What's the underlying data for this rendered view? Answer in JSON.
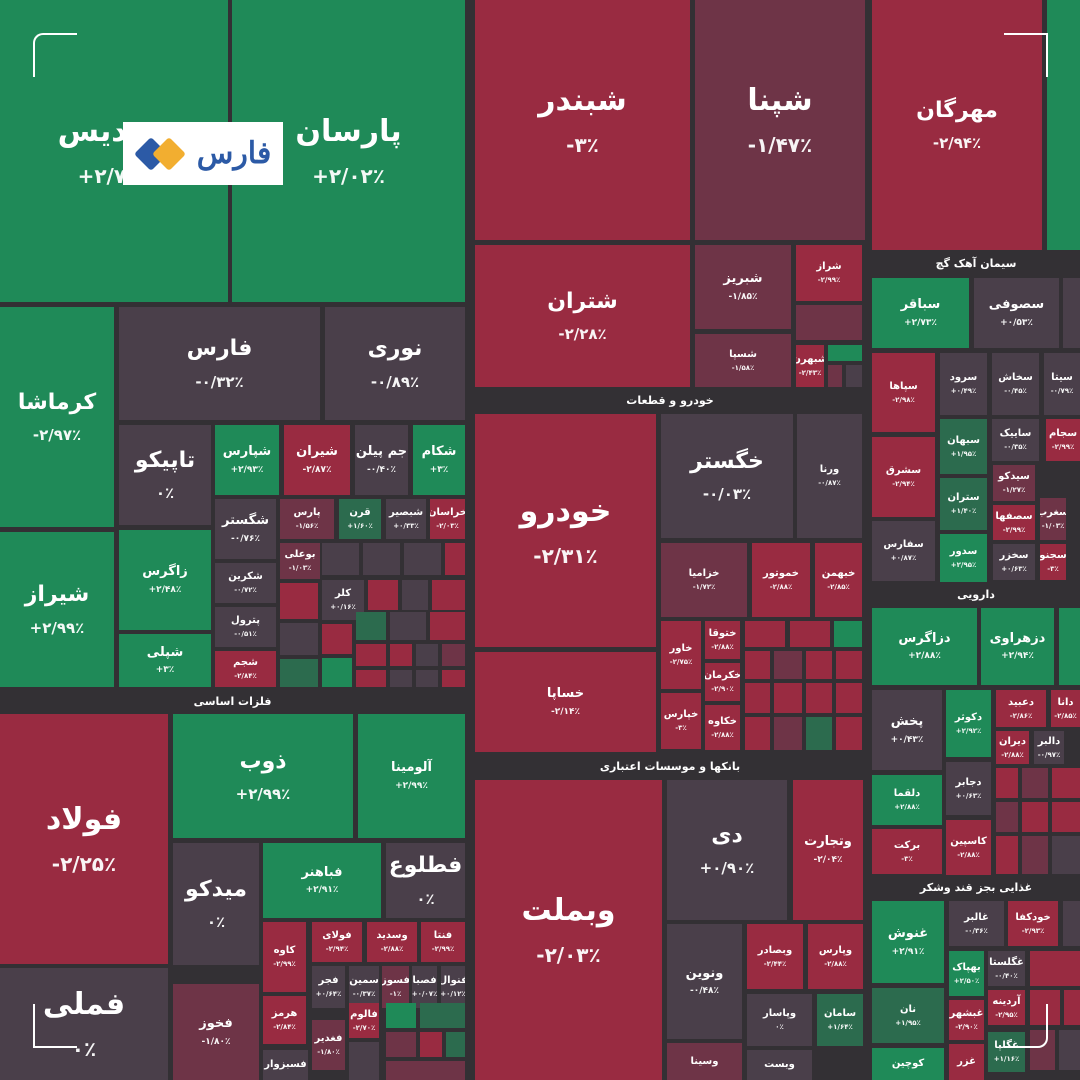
{
  "palette": {
    "g": "#1f8a58",
    "r": "#992b41",
    "n": "#4a3f4a",
    "m": "#6e3447",
    "d": "#2c6b4e"
  },
  "logo": {
    "text": "فارس",
    "colors": [
      "#2c5aa6",
      "#f2ae30"
    ]
  },
  "sections": [
    "فلزات اساسی",
    "خودرو و قطعات",
    "بانکها و موسسات اعتباری",
    "سیمان آهک گچ",
    "دارویی",
    "غذایی بجز قند وشکر"
  ],
  "tiles": [
    {
      "name": "شپدیس",
      "value": "+۲/۷۵٪",
      "c": "g"
    },
    {
      "name": "پارسان",
      "value": "+۲/۰۲٪",
      "c": "g"
    },
    {
      "name": "کرماشا",
      "value": "-۲/۹۷٪",
      "c": "g"
    },
    {
      "name": "شیراز",
      "value": "+۲/۹۹٪",
      "c": "g"
    },
    {
      "name": "فارس",
      "value": "-۰/۳۲٪",
      "c": "n"
    },
    {
      "name": "نوری",
      "value": "-۰/۸۹٪",
      "c": "n"
    },
    {
      "name": "تاپیکو",
      "value": "۰٪",
      "c": "n"
    },
    {
      "name": "زاگرس",
      "value": "+۲/۴۸٪",
      "c": "g"
    },
    {
      "name": "شپلی",
      "value": "+۳٪",
      "c": "g"
    },
    {
      "name": "شپارس",
      "value": "+۲/۹۳٪",
      "c": "g"
    },
    {
      "name": "شیران",
      "value": "-۲/۸۷٪",
      "c": "r"
    },
    {
      "name": "جم پیلن",
      "value": "-۰/۴۰٪",
      "c": "n"
    },
    {
      "name": "شکام",
      "value": "+۳٪",
      "c": "g"
    },
    {
      "name": "شگستر",
      "value": "-۰/۷۶٪",
      "c": "n"
    },
    {
      "name": "پارس",
      "value": "-۱/۵۶٪",
      "c": "m"
    },
    {
      "name": "قرن",
      "value": "+۱/۶۰٪",
      "c": "d"
    },
    {
      "name": "شبصیر",
      "value": "+۰/۳۳٪",
      "c": "n"
    },
    {
      "name": "خراسان",
      "value": "-۲/۰۳٪",
      "c": "r"
    },
    {
      "name": "شکرین",
      "value": "-۰/۷۲٪",
      "c": "n"
    },
    {
      "name": "بوعلی",
      "value": "-۱/۰۳٪",
      "c": "m"
    },
    {
      "name": "پترول",
      "value": "-۰/۵۱٪",
      "c": "n"
    },
    {
      "name": "کلر",
      "value": "+۰/۱۶٪",
      "c": "n"
    },
    {
      "name": "شجم",
      "value": "-۲/۸۴٪",
      "c": "r"
    },
    {
      "name": "فولاد",
      "value": "-۲/۲۵٪",
      "c": "r"
    },
    {
      "name": "ذوب",
      "value": "+۲/۹۹٪",
      "c": "g"
    },
    {
      "name": "آلومینا",
      "value": "+۲/۹۹٪",
      "c": "g"
    },
    {
      "name": "میدکو",
      "value": "۰٪",
      "c": "n"
    },
    {
      "name": "فباهنر",
      "value": "+۲/۹۱٪",
      "c": "g"
    },
    {
      "name": "فطلوع",
      "value": "۰٪",
      "c": "n"
    },
    {
      "name": "کاوه",
      "value": "-۲/۹۹٪",
      "c": "r"
    },
    {
      "name": "فولای",
      "value": "-۲/۹۴٪",
      "c": "r"
    },
    {
      "name": "وسدید",
      "value": "-۲/۸۸٪",
      "c": "r"
    },
    {
      "name": "فنتا",
      "value": "-۲/۹۹٪",
      "c": "r"
    },
    {
      "name": "فجر",
      "value": "+۰/۶۴٪",
      "c": "n"
    },
    {
      "name": "سمین",
      "value": "-۰/۳۷٪",
      "c": "n"
    },
    {
      "name": "فسوز",
      "value": "-۱٪",
      "c": "m"
    },
    {
      "name": "فصبا",
      "value": "+۰/۰۷٪",
      "c": "n"
    },
    {
      "name": "فنوال",
      "value": "+۰/۱۲٪",
      "c": "n"
    },
    {
      "name": "هرمز",
      "value": "-۲/۸۴٪",
      "c": "r"
    },
    {
      "name": "فخوز",
      "value": "-۱/۸۰٪",
      "c": "m"
    },
    {
      "name": "فملی",
      "value": "۰٪",
      "c": "n"
    },
    {
      "name": "فالوم",
      "value": "-۲/۷۰٪",
      "c": "r"
    },
    {
      "name": "فغدیر",
      "value": "-۱/۸۰٪",
      "c": "m"
    },
    {
      "name": "فسبزوار",
      "value": "",
      "c": "n"
    },
    {
      "name": "شبندر",
      "value": "-۳٪",
      "c": "r"
    },
    {
      "name": "شپنا",
      "value": "-۱/۴۷٪",
      "c": "m"
    },
    {
      "name": "شتران",
      "value": "-۲/۲۸٪",
      "c": "r"
    },
    {
      "name": "شبریز",
      "value": "-۱/۸۵٪",
      "c": "m"
    },
    {
      "name": "شراز",
      "value": "-۲/۹۹٪",
      "c": "r"
    },
    {
      "name": "شسپا",
      "value": "-۱/۵۸٪",
      "c": "m"
    },
    {
      "name": "شبهرن",
      "value": "-۲/۴۳٪",
      "c": "r"
    },
    {
      "name": "خودرو",
      "value": "-۲/۳۱٪",
      "c": "r"
    },
    {
      "name": "خگستر",
      "value": "-۰/۰۳٪",
      "c": "n"
    },
    {
      "name": "ورنا",
      "value": "-۰/۸۷٪",
      "c": "n"
    },
    {
      "name": "خزامیا",
      "value": "-۱/۷۲٪",
      "c": "m"
    },
    {
      "name": "خموتور",
      "value": "-۲/۸۸٪",
      "c": "r"
    },
    {
      "name": "خبهمن",
      "value": "-۲/۸۵٪",
      "c": "r"
    },
    {
      "name": "خساپا",
      "value": "-۲/۱۴٪",
      "c": "r"
    },
    {
      "name": "خاور",
      "value": "-۲/۷۵٪",
      "c": "r"
    },
    {
      "name": "ختوقا",
      "value": "-۲/۸۸٪",
      "c": "r"
    },
    {
      "name": "خکرمان",
      "value": "-۲/۹۰٪",
      "c": "r"
    },
    {
      "name": "خپارس",
      "value": "-۳٪",
      "c": "r"
    },
    {
      "name": "خکاوه",
      "value": "-۲/۸۸٪",
      "c": "r"
    },
    {
      "name": "وبملت",
      "value": "-۲/۰۳٪",
      "c": "r"
    },
    {
      "name": "دی",
      "value": "+۰/۹۰٪",
      "c": "n"
    },
    {
      "name": "وتجارت",
      "value": "-۲/۰۴٪",
      "c": "r"
    },
    {
      "name": "ونوین",
      "value": "-۰/۴۸٪",
      "c": "n"
    },
    {
      "name": "وبصادر",
      "value": "-۲/۴۴٪",
      "c": "r"
    },
    {
      "name": "وپارس",
      "value": "-۲/۸۸٪",
      "c": "r"
    },
    {
      "name": "وپاسار",
      "value": "۰٪",
      "c": "n"
    },
    {
      "name": "سامان",
      "value": "+۱/۶۴٪",
      "c": "d"
    },
    {
      "name": "وسینا",
      "value": "",
      "c": "m"
    },
    {
      "name": "وبست",
      "value": "",
      "c": "n"
    },
    {
      "name": "مهرگان",
      "value": "-۲/۹۴٪",
      "c": "r"
    },
    {
      "name": "سباقر",
      "value": "+۲/۷۳٪",
      "c": "g"
    },
    {
      "name": "سصوفی",
      "value": "+۰/۵۳٪",
      "c": "n"
    },
    {
      "name": "سپاها",
      "value": "-۲/۹۸٪",
      "c": "r"
    },
    {
      "name": "سرود",
      "value": "+۰/۴۹٪",
      "c": "n"
    },
    {
      "name": "سخاش",
      "value": "-۰/۴۵٪",
      "c": "n"
    },
    {
      "name": "سیتا",
      "value": "-۰/۷۹٪",
      "c": "n"
    },
    {
      "name": "سبهان",
      "value": "+۱/۹۵٪",
      "c": "d"
    },
    {
      "name": "ساییک",
      "value": "-۰/۳۵٪",
      "c": "n"
    },
    {
      "name": "سجام",
      "value": "-۲/۹۹٪",
      "c": "r"
    },
    {
      "name": "سشرق",
      "value": "-۲/۹۴٪",
      "c": "r"
    },
    {
      "name": "سیدکو",
      "value": "-۱/۲۷٪",
      "c": "m"
    },
    {
      "name": "ستران",
      "value": "+۱/۴۰٪",
      "c": "d"
    },
    {
      "name": "سصفها",
      "value": "-۲/۹۹٪",
      "c": "r"
    },
    {
      "name": "سغرب",
      "value": "-۱/۰۳٪",
      "c": "m"
    },
    {
      "name": "سفارس",
      "value": "+۰/۸۷٪",
      "c": "n"
    },
    {
      "name": "سدور",
      "value": "+۲/۹۵٪",
      "c": "g"
    },
    {
      "name": "سخزر",
      "value": "+۰/۶۳٪",
      "c": "n"
    },
    {
      "name": "سجنو",
      "value": "-۳٪",
      "c": "r"
    },
    {
      "name": "دزاگرس",
      "value": "+۲/۸۸٪",
      "c": "g"
    },
    {
      "name": "دزهراوی",
      "value": "+۲/۹۴٪",
      "c": "g"
    },
    {
      "name": "پخش",
      "value": "+۰/۴۳٪",
      "c": "n"
    },
    {
      "name": "دکوثر",
      "value": "+۲/۹۲٪",
      "c": "g"
    },
    {
      "name": "دعبید",
      "value": "-۲/۸۶٪",
      "c": "r"
    },
    {
      "name": "دانا",
      "value": "-۲/۸۵٪",
      "c": "r"
    },
    {
      "name": "دیران",
      "value": "-۲/۸۸٪",
      "c": "r"
    },
    {
      "name": "دالبر",
      "value": "-۰/۹۷٪",
      "c": "n"
    },
    {
      "name": "دلقما",
      "value": "+۲/۸۸٪",
      "c": "g"
    },
    {
      "name": "دجابر",
      "value": "+۰/۶۳٪",
      "c": "n"
    },
    {
      "name": "برکت",
      "value": "-۳٪",
      "c": "r"
    },
    {
      "name": "کاسپین",
      "value": "-۲/۸۸٪",
      "c": "r"
    },
    {
      "name": "غنوش",
      "value": "+۲/۹۱٪",
      "c": "g"
    },
    {
      "name": "غالبر",
      "value": "-۰/۳۶٪",
      "c": "n"
    },
    {
      "name": "خودکفا",
      "value": "-۲/۹۳٪",
      "c": "r"
    },
    {
      "name": "بهپاک",
      "value": "+۲/۵۰٪",
      "c": "g"
    },
    {
      "name": "غگلستا",
      "value": "-۰/۴۰٪",
      "c": "n"
    },
    {
      "name": "نان",
      "value": "+۱/۹۵٪",
      "c": "d"
    },
    {
      "name": "آردینه",
      "value": "-۲/۹۵٪",
      "c": "r"
    },
    {
      "name": "غبشهر",
      "value": "-۲/۹۰٪",
      "c": "r"
    },
    {
      "name": "غگلپا",
      "value": "+۱/۱۶٪",
      "c": "d"
    },
    {
      "name": "کوچین",
      "value": "",
      "c": "g"
    },
    {
      "name": "غزر",
      "value": "",
      "c": "r"
    }
  ]
}
